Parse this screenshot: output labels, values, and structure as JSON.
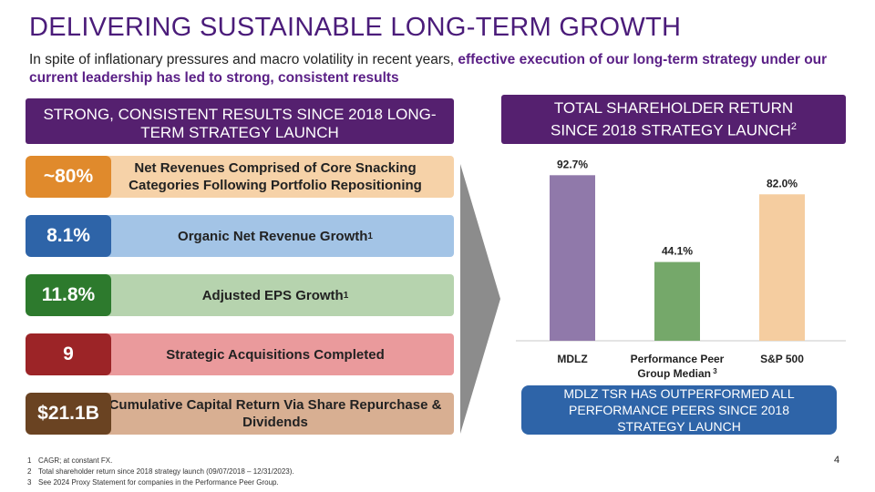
{
  "title": "DELIVERING SUSTAINABLE LONG-TERM GROWTH",
  "subtitle": {
    "plain": "In spite of inflationary pressures and macro volatility in recent years, ",
    "highlight": "effective execution of our long-term strategy under our current leadership has led to strong, consistent results"
  },
  "left_header": "STRONG, CONSISTENT RESULTS SINCE 2018 LONG-TERM STRATEGY LAUNCH",
  "right_header": {
    "line1": "TOTAL SHAREHOLDER RETURN",
    "line2": "SINCE 2018 STRATEGY LAUNCH",
    "sup": "2"
  },
  "metrics": [
    {
      "value": "~80%",
      "label": "Net Revenues Comprised of Core Snacking Categories Following Portfolio Repositioning",
      "sup": "",
      "badge_color": "#e08a2c",
      "bar_color": "#f6d2a8"
    },
    {
      "value": "8.1%",
      "label": "Organic Net Revenue Growth",
      "sup": "1",
      "badge_color": "#2e64a8",
      "bar_color": "#a3c4e6"
    },
    {
      "value": "11.8%",
      "label": "Adjusted EPS Growth",
      "sup": "1",
      "badge_color": "#2d7a2d",
      "bar_color": "#b6d3ae"
    },
    {
      "value": "9",
      "label": "Strategic Acquisitions Completed",
      "sup": "",
      "badge_color": "#9c2427",
      "bar_color": "#ea9a9c"
    },
    {
      "value": "$21.1B",
      "label": "Cumulative Capital Return Via Share Repurchase & Dividends",
      "sup": "",
      "badge_color": "#6a4322",
      "bar_color": "#d8af92"
    }
  ],
  "chart_data": {
    "type": "bar",
    "title": "TOTAL SHAREHOLDER RETURN SINCE 2018 STRATEGY LAUNCH",
    "categories": [
      "MDLZ",
      "Performance Peer Group Median",
      "S&P 500"
    ],
    "category_lines": [
      [
        "MDLZ"
      ],
      [
        "Performance Peer",
        "Group Median"
      ],
      [
        "S&P 500"
      ]
    ],
    "category_sup": [
      "",
      "3",
      ""
    ],
    "values": [
      92.7,
      44.1,
      82.0
    ],
    "labels": [
      "92.7%",
      "44.1%",
      "82.0%"
    ],
    "colors": [
      "#9079aa",
      "#75a86a",
      "#f5cda0"
    ],
    "ylim": [
      0,
      100
    ],
    "xlabel": "",
    "ylabel": ""
  },
  "callout": "MDLZ TSR HAS OUTPERFORMED ALL PERFORMANCE PEERS SINCE 2018 STRATEGY LAUNCH",
  "footnotes": [
    {
      "num": "1",
      "text": "CAGR; at constant FX."
    },
    {
      "num": "2",
      "text": "Total shareholder return since 2018 strategy launch (09/07/2018 – 12/31/2023)."
    },
    {
      "num": "3",
      "text": "See 2024 Proxy Statement for companies in the Performance Peer Group."
    }
  ],
  "page_number": "4"
}
